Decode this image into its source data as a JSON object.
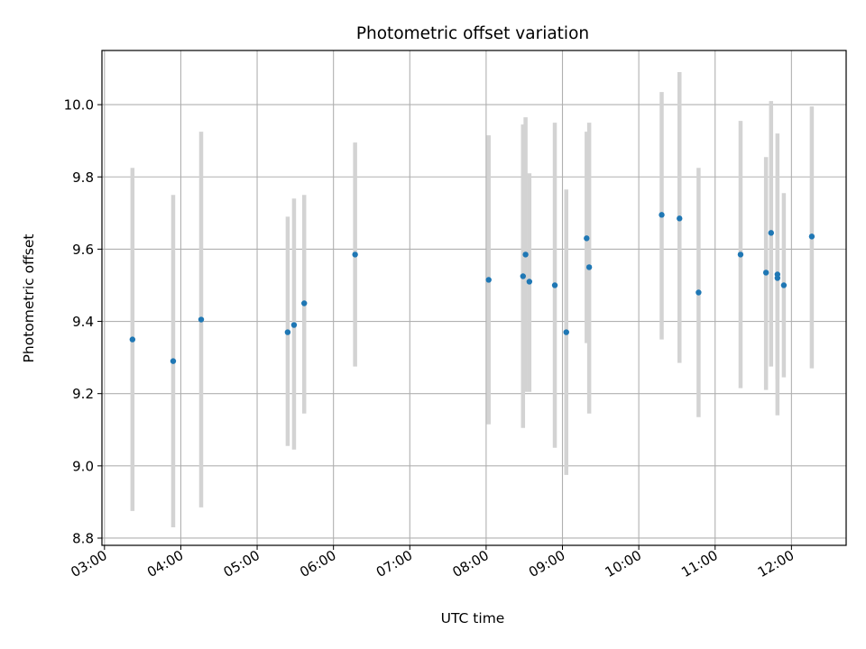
{
  "chart_data": {
    "type": "scatter",
    "title": "Photometric offset variation",
    "xlabel": "UTC time",
    "ylabel": "Photometric offset",
    "x_axis_kind": "time",
    "xlim": [
      "02:58",
      "12:43"
    ],
    "ylim": [
      8.78,
      10.15
    ],
    "x_ticks": [
      "03:00",
      "04:00",
      "05:00",
      "06:00",
      "07:00",
      "08:00",
      "09:00",
      "10:00",
      "11:00",
      "12:00"
    ],
    "y_ticks": [
      8.8,
      9.0,
      9.2,
      9.4,
      9.6,
      9.8,
      10.0
    ],
    "grid": true,
    "marker_color": "#1f77b4",
    "errorbar_color": "#d3d3d3",
    "series": [
      {
        "points": [
          {
            "x": "03:22",
            "y": 9.35,
            "ylow": 8.875,
            "yhigh": 9.825
          },
          {
            "x": "03:54",
            "y": 9.29,
            "ylow": 8.83,
            "yhigh": 9.75
          },
          {
            "x": "04:16",
            "y": 9.405,
            "ylow": 8.885,
            "yhigh": 9.925
          },
          {
            "x": "05:24",
            "y": 9.37,
            "ylow": 9.055,
            "yhigh": 9.69
          },
          {
            "x": "05:29",
            "y": 9.39,
            "ylow": 9.045,
            "yhigh": 9.74
          },
          {
            "x": "05:37",
            "y": 9.45,
            "ylow": 9.145,
            "yhigh": 9.75
          },
          {
            "x": "06:17",
            "y": 9.585,
            "ylow": 9.275,
            "yhigh": 9.895
          },
          {
            "x": "08:02",
            "y": 9.515,
            "ylow": 9.115,
            "yhigh": 9.915
          },
          {
            "x": "08:29",
            "y": 9.525,
            "ylow": 9.105,
            "yhigh": 9.945
          },
          {
            "x": "08:31",
            "y": 9.585,
            "ylow": 9.205,
            "yhigh": 9.965
          },
          {
            "x": "08:34",
            "y": 9.51,
            "ylow": 9.205,
            "yhigh": 9.81
          },
          {
            "x": "08:54",
            "y": 9.5,
            "ylow": 9.05,
            "yhigh": 9.95
          },
          {
            "x": "09:03",
            "y": 9.37,
            "ylow": 8.975,
            "yhigh": 9.765
          },
          {
            "x": "09:19",
            "y": 9.63,
            "ylow": 9.34,
            "yhigh": 9.925
          },
          {
            "x": "09:21",
            "y": 9.55,
            "ylow": 9.145,
            "yhigh": 9.95
          },
          {
            "x": "10:18",
            "y": 9.695,
            "ylow": 9.35,
            "yhigh": 10.035
          },
          {
            "x": "10:32",
            "y": 9.685,
            "ylow": 9.285,
            "yhigh": 10.09
          },
          {
            "x": "10:47",
            "y": 9.48,
            "ylow": 9.135,
            "yhigh": 9.825
          },
          {
            "x": "11:20",
            "y": 9.585,
            "ylow": 9.215,
            "yhigh": 9.955
          },
          {
            "x": "11:40",
            "y": 9.535,
            "ylow": 9.21,
            "yhigh": 9.855
          },
          {
            "x": "11:44",
            "y": 9.645,
            "ylow": 9.275,
            "yhigh": 10.01
          },
          {
            "x": "11:49",
            "y": 9.53,
            "ylow": 9.14,
            "yhigh": 9.92
          },
          {
            "x": "11:49",
            "y": 9.52,
            "ylow": 9.24,
            "yhigh": 9.8
          },
          {
            "x": "11:54",
            "y": 9.5,
            "ylow": 9.245,
            "yhigh": 9.755
          },
          {
            "x": "12:16",
            "y": 9.635,
            "ylow": 9.27,
            "yhigh": 9.995
          }
        ]
      }
    ]
  }
}
